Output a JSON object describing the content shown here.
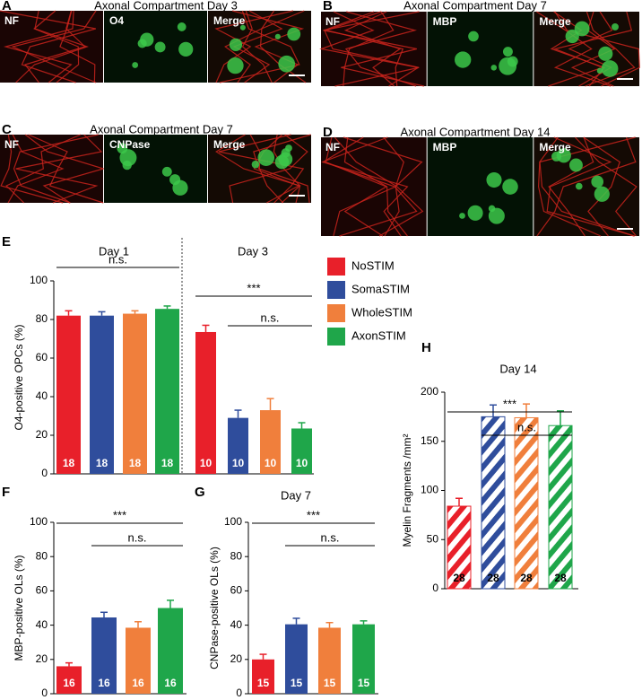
{
  "panels": [
    {
      "letter": "A",
      "title": "Axonal Compartment Day 3",
      "labels": [
        "NF",
        "O4",
        "Merge"
      ]
    },
    {
      "letter": "B",
      "title": "Axonal Compartment Day 7",
      "labels": [
        "NF",
        "MBP",
        "Merge"
      ]
    },
    {
      "letter": "C",
      "title": "Axonal Compartment Day 7",
      "labels": [
        "NF",
        "CNPase",
        "Merge"
      ]
    },
    {
      "letter": "D",
      "title": "Axonal Compartment Day 14",
      "labels": [
        "NF",
        "MBP",
        "Merge"
      ]
    }
  ],
  "legend": [
    {
      "name": "NoSTIM",
      "color": "#e8202a"
    },
    {
      "name": "SomaSTIM",
      "color": "#2f4d9c"
    },
    {
      "name": "WholeSTIM",
      "color": "#f07f3c"
    },
    {
      "name": "AxonSTIM",
      "color": "#1fa64a"
    }
  ],
  "chart_data": [
    {
      "type": "bar",
      "panel": "E",
      "ylabel": "O4-positive OPCs (%)",
      "ylim": [
        0,
        100
      ],
      "yticks": [
        0,
        20,
        40,
        60,
        80,
        100
      ],
      "hatched": false,
      "groups": [
        {
          "title": "Day 1",
          "values": [
            82,
            82,
            83,
            85.5
          ],
          "errors": [
            2.5,
            2,
            1.5,
            1.5
          ],
          "n": [
            18,
            18,
            18,
            18
          ],
          "annotations": [
            "n.s."
          ]
        },
        {
          "title": "Day 3",
          "values": [
            73.5,
            29,
            33,
            23.5
          ],
          "errors": [
            3.5,
            4,
            6,
            3
          ],
          "n": [
            10,
            10,
            10,
            10
          ],
          "annotations": [
            "***",
            "n.s."
          ]
        }
      ]
    },
    {
      "type": "bar",
      "panel": "F",
      "ylabel": "MBP-positive OLs (%)",
      "ylim": [
        0,
        100
      ],
      "yticks": [
        0,
        20,
        40,
        60,
        80,
        100
      ],
      "hatched": false,
      "groups": [
        {
          "values": [
            16,
            44.5,
            38.5,
            50
          ],
          "errors": [
            2,
            3,
            3.5,
            4.5
          ],
          "n": [
            16,
            16,
            16,
            16
          ],
          "annotations": [
            "***",
            "n.s."
          ]
        }
      ]
    },
    {
      "type": "bar",
      "panel": "G",
      "ylabel": "CNPase-positive OLs (%)",
      "ylim": [
        0,
        100
      ],
      "yticks": [
        0,
        20,
        40,
        60,
        80,
        100
      ],
      "hatched": false,
      "groups": [
        {
          "title": "Day 7",
          "values": [
            20,
            40.5,
            38.5,
            40.5
          ],
          "errors": [
            3,
            3.5,
            3,
            2
          ],
          "n": [
            15,
            15,
            15,
            15
          ],
          "annotations": [
            "***",
            "n.s."
          ]
        }
      ]
    },
    {
      "type": "bar",
      "panel": "H",
      "ylabel": "Myelin Fragments /mm²",
      "ylim": [
        0,
        200
      ],
      "yticks": [
        0,
        50,
        100,
        150,
        200
      ],
      "hatched": true,
      "groups": [
        {
          "title": "Day 14",
          "values": [
            84,
            175,
            174,
            166
          ],
          "errors": [
            8,
            12,
            14,
            15
          ],
          "n": [
            28,
            28,
            28,
            28
          ],
          "annotations": [
            "***",
            "n.s."
          ]
        }
      ]
    }
  ]
}
